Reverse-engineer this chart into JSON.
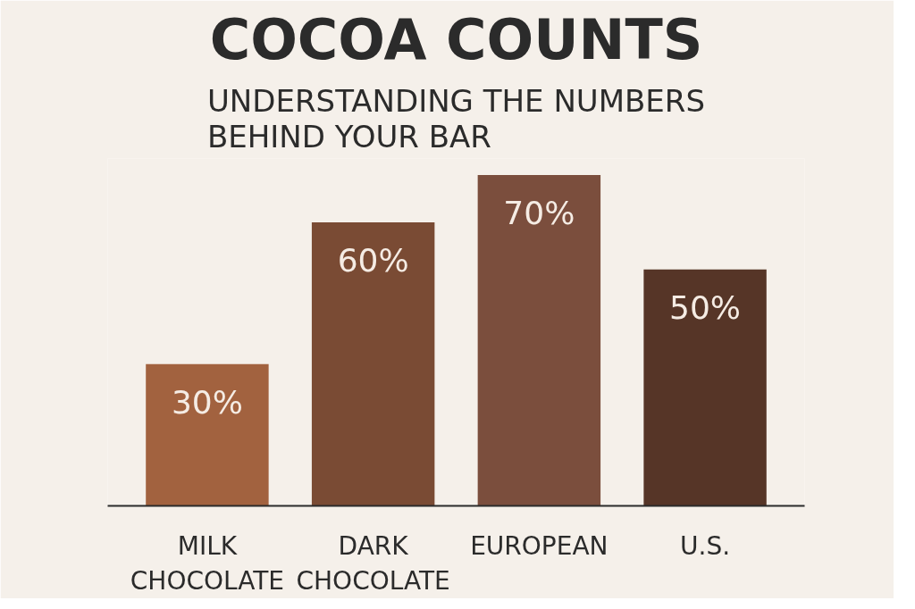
{
  "chart_data": {
    "type": "bar",
    "title": "COCOA COUNTS",
    "subtitle": "UNDERSTANDING THE NUMBERS BEHIND YOUR BAR",
    "categories": [
      "MILK CHOCOLATE",
      "DARK CHOCOLATE",
      "EUROPEAN",
      "U.S."
    ],
    "values": [
      30,
      60,
      70,
      50
    ],
    "colors": [
      "#a2623f",
      "#7a4b34",
      "#7b4e3d",
      "#563527"
    ],
    "value_labels": [
      "30%",
      "60%",
      "70%",
      "50%"
    ],
    "grid": false
  }
}
